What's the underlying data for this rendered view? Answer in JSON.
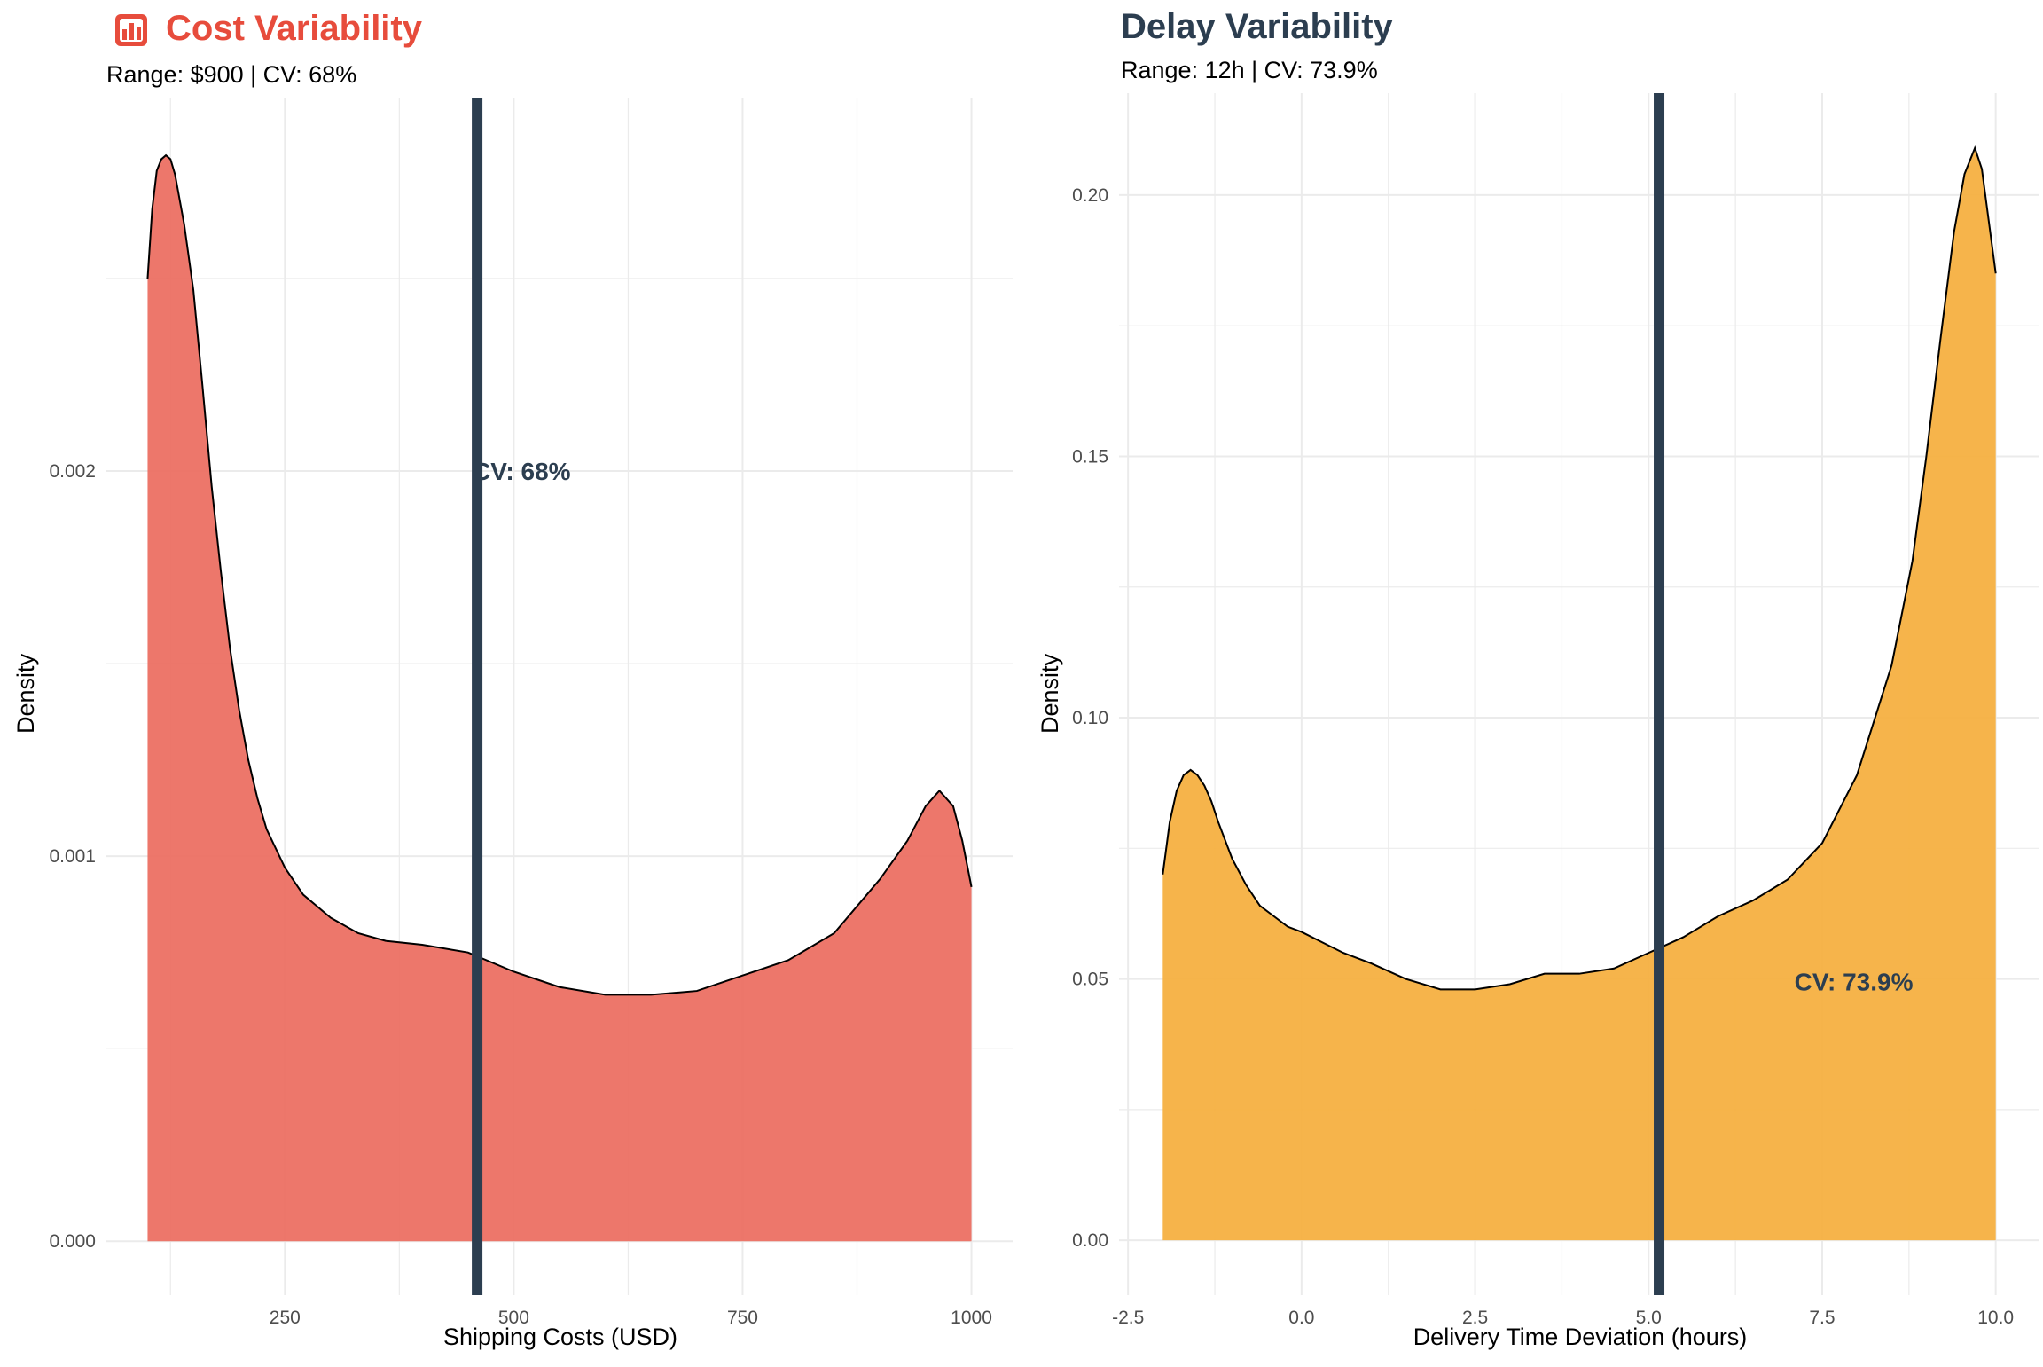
{
  "colors": {
    "cost_fill": "#ec7063",
    "delay_fill": "#f5b041",
    "vline": "#2c3e50",
    "title_cost": "#e74c3c",
    "title_delay": "#2c3e50",
    "grid": "#ebebeb"
  },
  "chart_data": [
    {
      "type": "area",
      "title": "Cost Variability",
      "title_icon": "bar-chart-icon",
      "subtitle": "Range: $900 | CV: 68%",
      "xlabel": "Shipping Costs (USD)",
      "ylabel": "Density",
      "xlim": [
        55,
        1045
      ],
      "ylim": [
        -0.00014,
        0.00297
      ],
      "grid": true,
      "x_ticks": [
        250,
        500,
        750,
        1000
      ],
      "x_tick_labels": [
        "250",
        "500",
        "750",
        "1000"
      ],
      "y_ticks": [
        0,
        0.001,
        0.002
      ],
      "y_tick_labels": [
        "0.000",
        "0.001",
        "0.002"
      ],
      "x": [
        100,
        105,
        110,
        115,
        120,
        125,
        130,
        140,
        150,
        160,
        170,
        180,
        190,
        200,
        210,
        220,
        230,
        250,
        270,
        300,
        330,
        360,
        400,
        450,
        500,
        550,
        600,
        650,
        700,
        750,
        800,
        850,
        900,
        930,
        950,
        965,
        980,
        990,
        1000
      ],
      "y": [
        0.0025,
        0.00268,
        0.00278,
        0.00281,
        0.00282,
        0.00281,
        0.00277,
        0.00264,
        0.00247,
        0.00222,
        0.00196,
        0.00174,
        0.00154,
        0.00138,
        0.00125,
        0.00115,
        0.00107,
        0.00097,
        0.0009,
        0.00084,
        0.0008,
        0.00078,
        0.00077,
        0.00075,
        0.0007,
        0.00066,
        0.00064,
        0.00064,
        0.00065,
        0.00069,
        0.00073,
        0.0008,
        0.00094,
        0.00104,
        0.00113,
        0.00117,
        0.00113,
        0.00104,
        0.00092
      ],
      "vline": 460,
      "annotation": {
        "x": 460,
        "y": 0.002,
        "text": "CV: 68%"
      }
    },
    {
      "type": "area",
      "title": "Delay Variability",
      "subtitle": "Range: 12h | CV: 73.9%",
      "xlabel": "Delivery Time Deviation (hours)",
      "ylabel": "Density",
      "xlim": [
        -2.63,
        10.63
      ],
      "ylim": [
        -0.0105,
        0.2195
      ],
      "grid": true,
      "x_ticks": [
        -2.5,
        0,
        2.5,
        5,
        7.5,
        10
      ],
      "x_tick_labels": [
        "-2.5",
        "0.0",
        "2.5",
        "5.0",
        "7.5",
        "10.0"
      ],
      "y_ticks": [
        0,
        0.05,
        0.1,
        0.15,
        0.2
      ],
      "y_tick_labels": [
        "0.00",
        "0.05",
        "0.10",
        "0.15",
        "0.20"
      ],
      "x": [
        -2.0,
        -1.9,
        -1.8,
        -1.7,
        -1.6,
        -1.5,
        -1.4,
        -1.3,
        -1.2,
        -1.0,
        -0.8,
        -0.6,
        -0.4,
        -0.2,
        0.0,
        0.3,
        0.6,
        1.0,
        1.5,
        2.0,
        2.5,
        3.0,
        3.5,
        4.0,
        4.5,
        5.0,
        5.5,
        6.0,
        6.5,
        7.0,
        7.5,
        8.0,
        8.5,
        8.8,
        9.0,
        9.2,
        9.4,
        9.55,
        9.7,
        9.8,
        9.9,
        10.0
      ],
      "y": [
        0.07,
        0.08,
        0.086,
        0.089,
        0.09,
        0.089,
        0.087,
        0.084,
        0.08,
        0.073,
        0.068,
        0.064,
        0.062,
        0.06,
        0.059,
        0.057,
        0.055,
        0.053,
        0.05,
        0.048,
        0.048,
        0.049,
        0.051,
        0.051,
        0.052,
        0.055,
        0.058,
        0.062,
        0.065,
        0.069,
        0.076,
        0.089,
        0.11,
        0.13,
        0.15,
        0.172,
        0.193,
        0.204,
        0.209,
        0.205,
        0.195,
        0.185
      ],
      "vline": 5.15,
      "annotation": {
        "x": 7.1,
        "y": 0.0495,
        "text": "CV: 73.9%"
      }
    }
  ]
}
